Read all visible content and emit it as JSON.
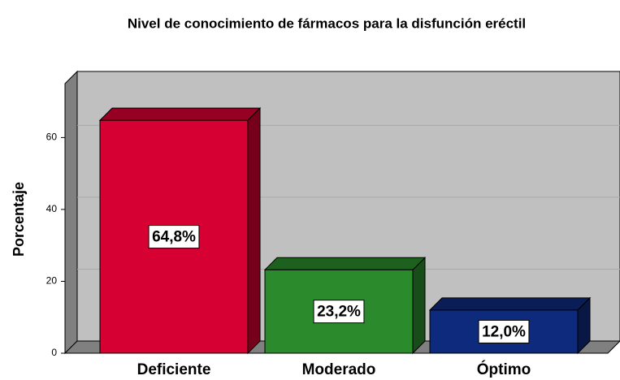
{
  "chart_data": {
    "type": "bar",
    "title": "Nivel de conocimiento de fármacos para la disfunción eréctil",
    "ylabel": "Porcentaje",
    "categories": [
      "Deficiente",
      "Moderado",
      "Óptimo"
    ],
    "values": [
      64.8,
      23.2,
      12.0
    ],
    "value_labels": [
      "64,8%",
      "23,2%",
      "12,0%"
    ],
    "colors": [
      "#d60032",
      "#2b8a2b",
      "#0e2a7c"
    ],
    "ylim": [
      0,
      75
    ],
    "yticks": [
      0,
      20,
      40,
      60
    ],
    "grid": true
  }
}
